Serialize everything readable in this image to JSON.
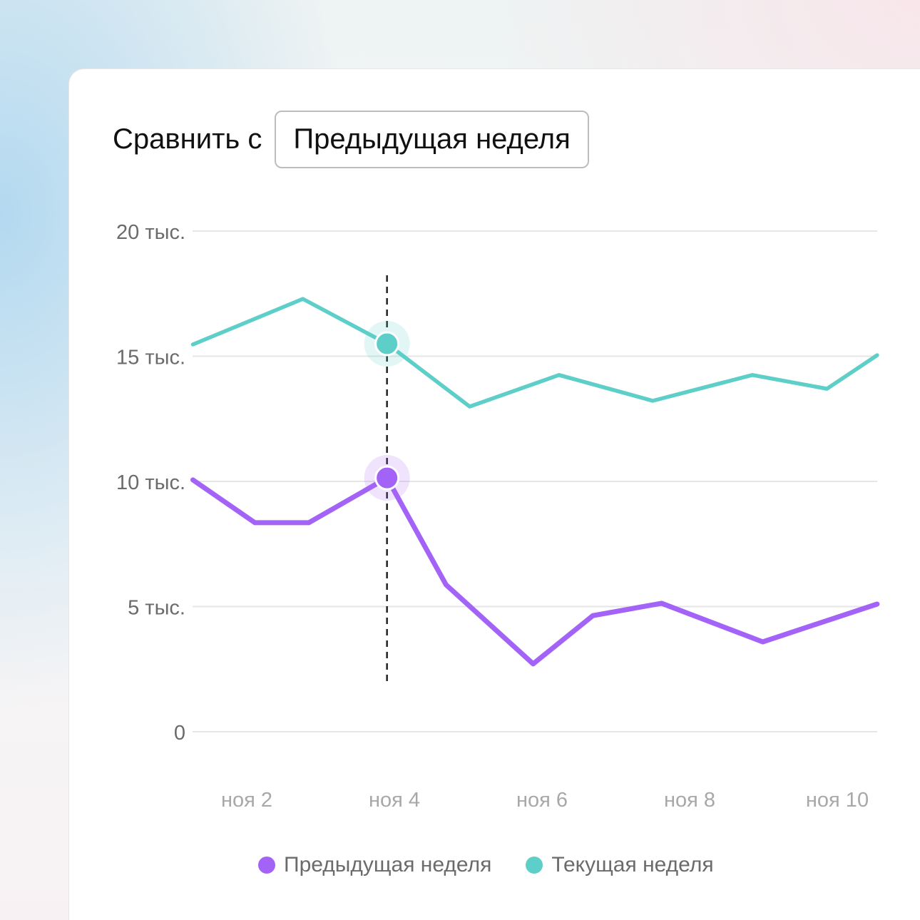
{
  "header": {
    "compare_label": "Сравнить с",
    "compare_select": "Предыдущая неделя"
  },
  "chart_data": {
    "type": "line",
    "title": "",
    "xlabel": "",
    "ylabel": "",
    "ylim": [
      0,
      20000
    ],
    "xlim": [
      1.27,
      10.54
    ],
    "y_ticks": [
      {
        "v": 0,
        "label": "0"
      },
      {
        "v": 5000,
        "label": "5 тыс."
      },
      {
        "v": 10000,
        "label": "10 тыс."
      },
      {
        "v": 15000,
        "label": "15 тыс."
      },
      {
        "v": 20000,
        "label": "20 тыс."
      }
    ],
    "x_ticks": [
      {
        "v": 2,
        "label": "ноя 2"
      },
      {
        "v": 4,
        "label": "ноя 4"
      },
      {
        "v": 6,
        "label": "ноя 6"
      },
      {
        "v": 8,
        "label": "ноя 8"
      },
      {
        "v": 10,
        "label": "ноя 10"
      }
    ],
    "grid": true,
    "legend_position": "bottom",
    "hover_x": 3.9,
    "series": [
      {
        "name": "Предыдущая неделя",
        "color": "#a463f7",
        "x": [
          1.27,
          2.11,
          2.84,
          3.9,
          4.7,
          5.88,
          6.69,
          7.62,
          8.99,
          10.54
        ],
        "values": [
          10060,
          8350,
          8350,
          10140,
          5870,
          2710,
          4640,
          5130,
          3590,
          5100
        ]
      },
      {
        "name": "Текущая неделя",
        "color": "#5ecfc8",
        "x": [
          1.27,
          2.76,
          3.9,
          5.02,
          6.23,
          7.5,
          8.85,
          9.86,
          10.54
        ],
        "values": [
          15470,
          17290,
          15500,
          12990,
          14250,
          13220,
          14250,
          13700,
          15040
        ]
      }
    ]
  }
}
